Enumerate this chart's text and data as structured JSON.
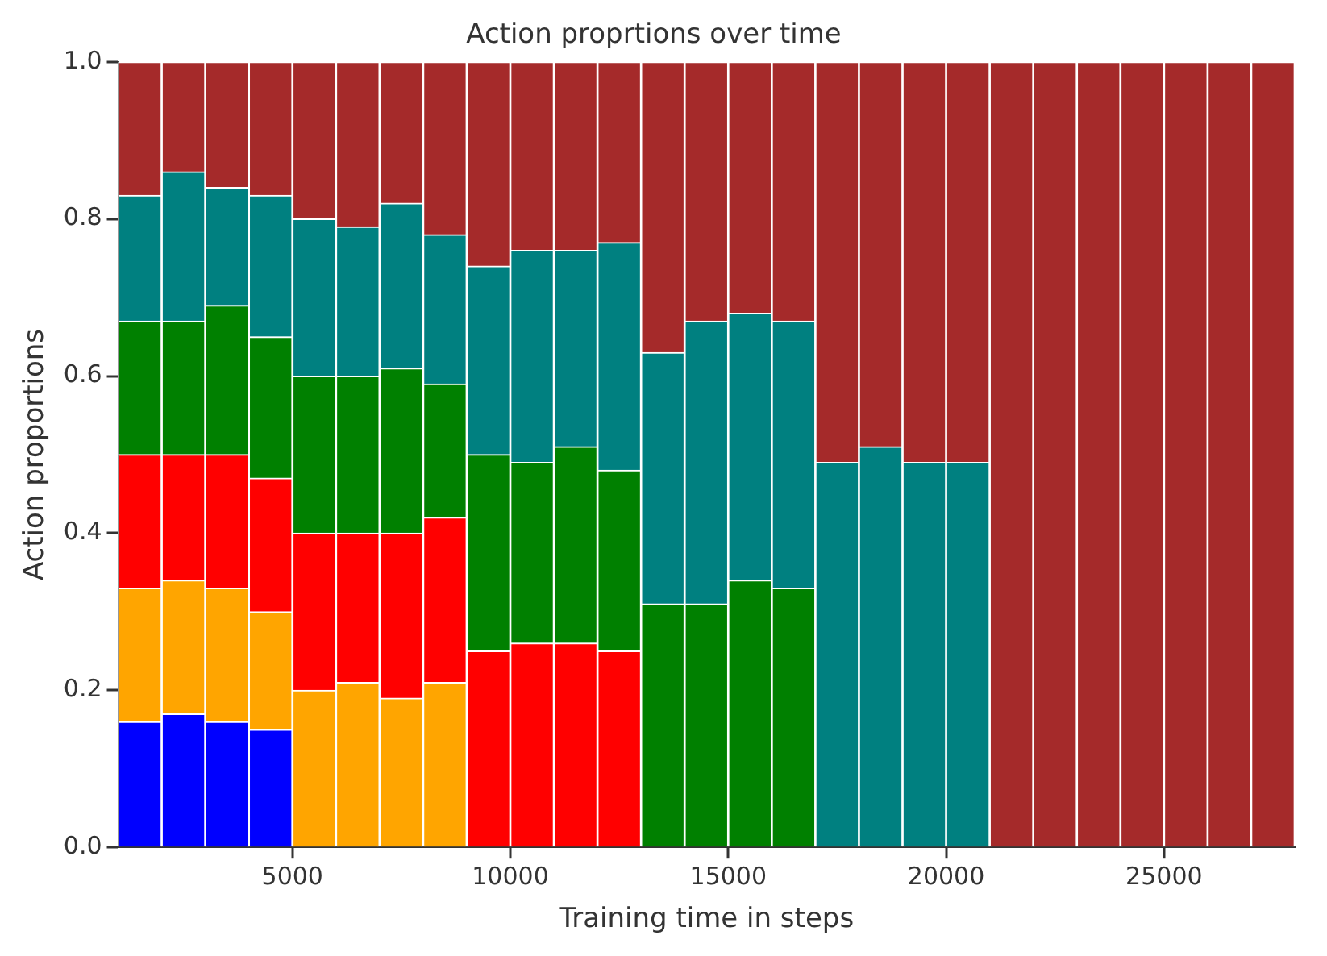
{
  "chart_data": {
    "type": "bar",
    "title": "Action proprtions over time",
    "xlabel": "Training time in steps",
    "ylabel": "Action proportions",
    "x": [
      1500,
      2500,
      3500,
      4500,
      5500,
      6500,
      7500,
      8500,
      9500,
      10500,
      11500,
      12500,
      13500,
      14500,
      15500,
      16500,
      17500,
      18500,
      19500,
      20500,
      21500,
      22500,
      23500,
      24500,
      25500,
      26500,
      27500
    ],
    "stacked": true,
    "xlim": [
      1000,
      28000
    ],
    "xticks": [
      5000,
      10000,
      15000,
      20000,
      25000
    ],
    "ylim": [
      0,
      1
    ],
    "yticks": [
      {
        "value": 0,
        "label": "0.0"
      },
      {
        "value": 0.2,
        "label": "0.2"
      },
      {
        "value": 0.4,
        "label": "0.4"
      },
      {
        "value": 0.6,
        "label": "0.6"
      },
      {
        "value": 0.8,
        "label": "0.8"
      },
      {
        "value": 1,
        "label": "1.0"
      }
    ],
    "grid": false,
    "legend": false,
    "series": [
      {
        "color": "#0000ff",
        "values": [
          0.16,
          0.17,
          0.16,
          0.15,
          null,
          null,
          null,
          null,
          null,
          null,
          null,
          null,
          null,
          null,
          null,
          null,
          null,
          null,
          null,
          null,
          null,
          null,
          null,
          null,
          null,
          null,
          null
        ]
      },
      {
        "color": "#ffa500",
        "values": [
          0.17,
          0.17,
          0.17,
          0.15,
          0.2,
          0.21,
          0.19,
          0.21,
          null,
          null,
          null,
          null,
          null,
          null,
          null,
          null,
          null,
          null,
          null,
          null,
          null,
          null,
          null,
          null,
          null,
          null,
          null
        ]
      },
      {
        "color": "#ff0000",
        "values": [
          0.17,
          0.16,
          0.17,
          0.17,
          0.2,
          0.19,
          0.21,
          0.21,
          0.25,
          0.26,
          0.26,
          0.25,
          null,
          null,
          null,
          null,
          null,
          null,
          null,
          null,
          null,
          null,
          null,
          null,
          null,
          null,
          null
        ]
      },
      {
        "color": "#008000",
        "values": [
          0.17,
          0.17,
          0.19,
          0.18,
          0.2,
          0.2,
          0.21,
          0.17,
          0.25,
          0.23,
          0.25,
          0.23,
          0.31,
          0.31,
          0.34,
          0.33,
          null,
          null,
          null,
          null,
          null,
          null,
          null,
          null,
          null,
          null,
          null
        ]
      },
      {
        "color": "#008080",
        "values": [
          0.16,
          0.19,
          0.15,
          0.18,
          0.2,
          0.19,
          0.21,
          0.19,
          0.24,
          0.27,
          0.25,
          0.29,
          0.32,
          0.36,
          0.34,
          0.34,
          0.49,
          0.51,
          0.49,
          0.49,
          null,
          null,
          null,
          null,
          null,
          null,
          null
        ]
      },
      {
        "color": "#a52a2a",
        "values": [
          0.17,
          0.14,
          0.16,
          0.17,
          0.2,
          0.21,
          0.18,
          0.22,
          0.26,
          0.24,
          0.24,
          0.23,
          0.37,
          0.33,
          0.32,
          0.33,
          0.51,
          0.49,
          0.51,
          0.51,
          1,
          1,
          1,
          1,
          1,
          1,
          1
        ]
      }
    ]
  }
}
